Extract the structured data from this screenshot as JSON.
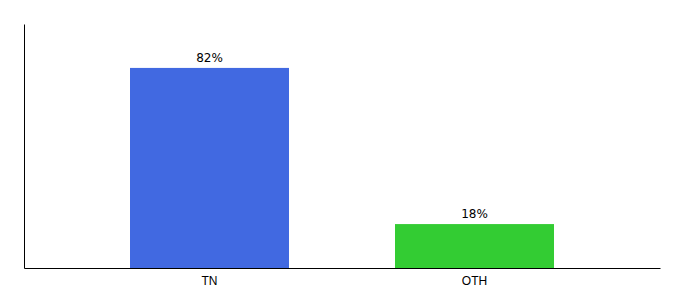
{
  "chart_data": {
    "type": "bar",
    "categories": [
      "TN",
      "OTH"
    ],
    "values": [
      82,
      18
    ],
    "value_labels": [
      "82%",
      "18%"
    ],
    "colors": [
      "#4169e1",
      "#33cc33"
    ],
    "ylim": [
      0,
      100
    ],
    "data_labels": true,
    "tick_labels": "x",
    "grid": false
  }
}
